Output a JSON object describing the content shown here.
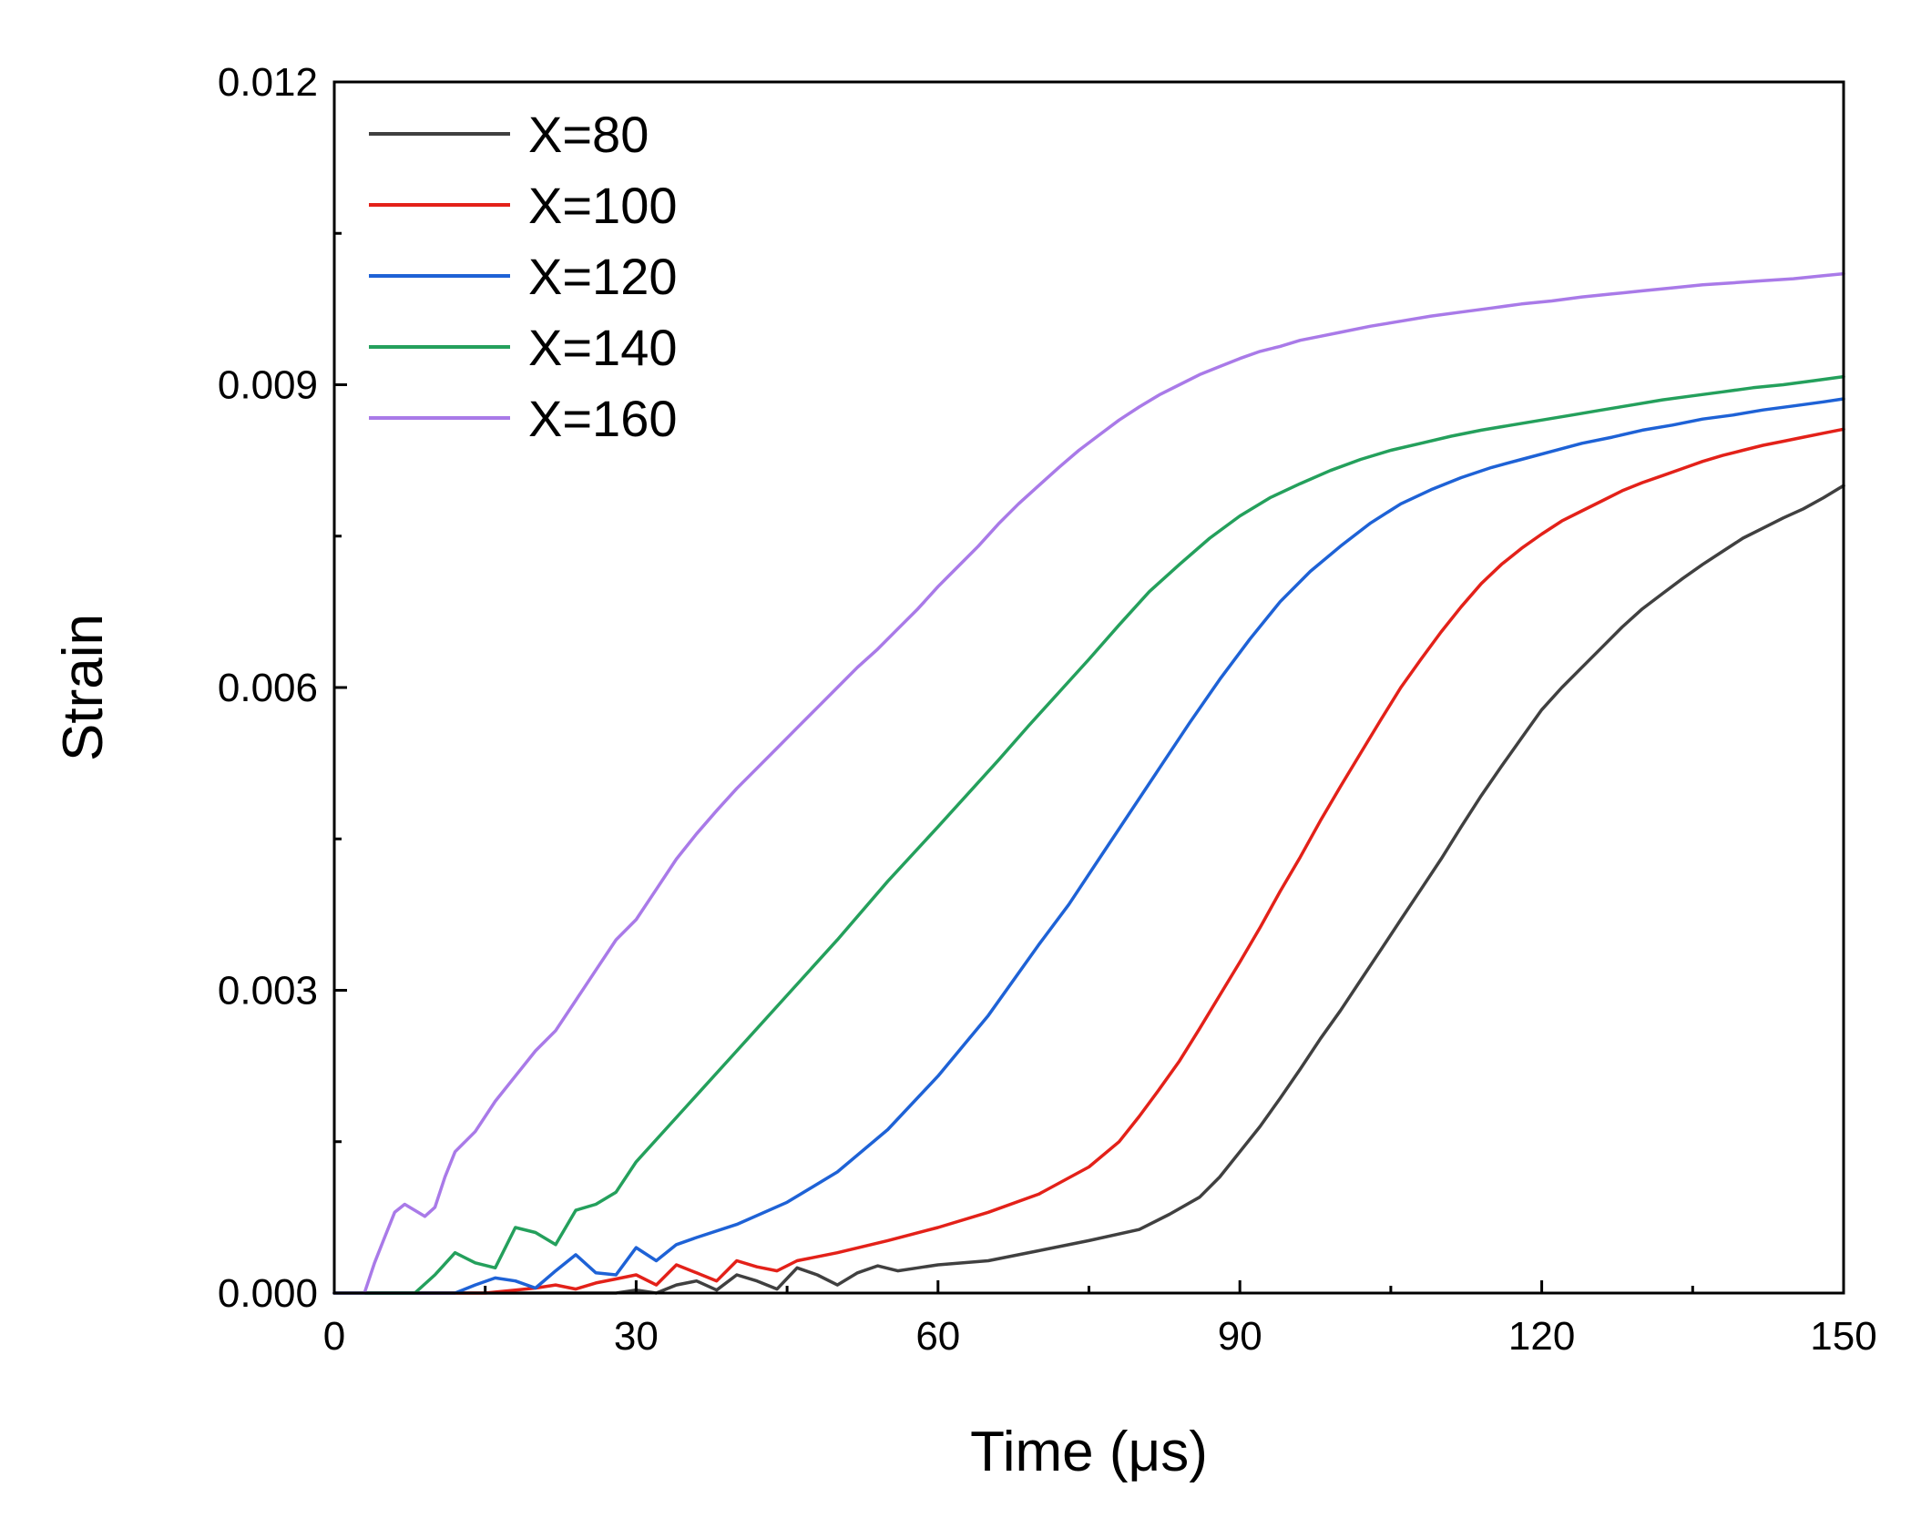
{
  "chart_data": {
    "type": "line",
    "title": "",
    "xlabel": "Time (μs)",
    "ylabel": "Strain",
    "xlim": [
      0,
      150
    ],
    "ylim": [
      0,
      0.012
    ],
    "xticks": [
      "0",
      "30",
      "60",
      "90",
      "120",
      "150"
    ],
    "yticks": [
      "0.000",
      "0.003",
      "0.006",
      "0.009",
      "0.012"
    ],
    "grid": false,
    "legend_position": "top-left",
    "series": [
      {
        "name": "X=80",
        "color": "#404040",
        "x": [
          0,
          28,
          30,
          32,
          34,
          36,
          38,
          40,
          42,
          44,
          46,
          48,
          50,
          52,
          54,
          56,
          58,
          60,
          65,
          70,
          75,
          80,
          83,
          86,
          88,
          90,
          92,
          94,
          96,
          98,
          100,
          102,
          104,
          106,
          108,
          110,
          112,
          114,
          116,
          118,
          120,
          122,
          124,
          126,
          128,
          130,
          132,
          134,
          136,
          138,
          140,
          142,
          144,
          146,
          148,
          150
        ],
        "values": [
          0,
          0,
          3e-05,
          0,
          8e-05,
          0.00012,
          3e-05,
          0.00018,
          0.00012,
          4e-05,
          0.00025,
          0.00018,
          8e-05,
          0.0002,
          0.00027,
          0.00022,
          0.00025,
          0.00028,
          0.00032,
          0.00042,
          0.00052,
          0.00063,
          0.00078,
          0.00095,
          0.00115,
          0.0014,
          0.00165,
          0.00193,
          0.00222,
          0.00252,
          0.0028,
          0.0031,
          0.0034,
          0.0037,
          0.004,
          0.0043,
          0.00462,
          0.00493,
          0.00522,
          0.0055,
          0.00578,
          0.006,
          0.0062,
          0.0064,
          0.0066,
          0.00678,
          0.00693,
          0.00708,
          0.00722,
          0.00735,
          0.00748,
          0.00758,
          0.00768,
          0.00777,
          0.00788,
          0.008
        ]
      },
      {
        "name": "X=100",
        "color": "#e32119",
        "x": [
          0,
          15,
          18,
          20,
          22,
          24,
          26,
          28,
          30,
          32,
          34,
          36,
          38,
          40,
          42,
          44,
          46,
          50,
          55,
          60,
          65,
          70,
          75,
          78,
          80,
          82,
          84,
          86,
          88,
          90,
          92,
          94,
          96,
          98,
          100,
          102,
          104,
          106,
          108,
          110,
          112,
          114,
          116,
          118,
          120,
          122,
          124,
          126,
          128,
          130,
          132,
          134,
          136,
          138,
          140,
          142,
          144,
          146,
          148,
          150
        ],
        "values": [
          0,
          0,
          3e-05,
          5e-05,
          8e-05,
          4e-05,
          0.0001,
          0.00014,
          0.00018,
          8e-05,
          0.00028,
          0.0002,
          0.00012,
          0.00032,
          0.00026,
          0.00022,
          0.00032,
          0.0004,
          0.00052,
          0.00065,
          0.0008,
          0.00098,
          0.00125,
          0.0015,
          0.00175,
          0.00202,
          0.0023,
          0.00262,
          0.00295,
          0.00328,
          0.00362,
          0.00398,
          0.00432,
          0.00468,
          0.00502,
          0.00535,
          0.00568,
          0.006,
          0.00628,
          0.00655,
          0.0068,
          0.00703,
          0.00722,
          0.00738,
          0.00752,
          0.00765,
          0.00775,
          0.00785,
          0.00795,
          0.00803,
          0.0081,
          0.00817,
          0.00824,
          0.0083,
          0.00835,
          0.0084,
          0.00844,
          0.00848,
          0.00852,
          0.00856
        ]
      },
      {
        "name": "X=120",
        "color": "#1e62d6",
        "x": [
          0,
          12,
          14,
          16,
          18,
          20,
          22,
          24,
          26,
          28,
          30,
          32,
          34,
          36,
          40,
          45,
          50,
          55,
          60,
          65,
          70,
          73,
          76,
          79,
          82,
          85,
          88,
          91,
          94,
          97,
          100,
          103,
          106,
          109,
          112,
          115,
          118,
          121,
          124,
          127,
          130,
          133,
          136,
          139,
          142,
          145,
          148,
          150
        ],
        "values": [
          0,
          0,
          8e-05,
          0.00015,
          0.00012,
          5e-05,
          0.00022,
          0.00038,
          0.0002,
          0.00018,
          0.00045,
          0.00032,
          0.00048,
          0.00055,
          0.00068,
          0.0009,
          0.0012,
          0.00162,
          0.00215,
          0.00275,
          0.00345,
          0.00385,
          0.0043,
          0.00475,
          0.0052,
          0.00565,
          0.00608,
          0.00648,
          0.00685,
          0.00715,
          0.0074,
          0.00763,
          0.00782,
          0.00796,
          0.00808,
          0.00818,
          0.00826,
          0.00834,
          0.00842,
          0.00848,
          0.00855,
          0.0086,
          0.00866,
          0.0087,
          0.00875,
          0.00879,
          0.00883,
          0.00886
        ]
      },
      {
        "name": "X=140",
        "color": "#24a05c",
        "x": [
          0,
          8,
          10,
          12,
          14,
          16,
          18,
          20,
          22,
          24,
          26,
          28,
          30,
          35,
          40,
          45,
          50,
          55,
          60,
          63,
          66,
          69,
          72,
          75,
          78,
          81,
          84,
          87,
          90,
          93,
          96,
          99,
          102,
          105,
          108,
          111,
          114,
          117,
          120,
          123,
          126,
          129,
          132,
          135,
          138,
          141,
          144,
          147,
          150
        ],
        "values": [
          0,
          0,
          0.00018,
          0.0004,
          0.0003,
          0.00025,
          0.00065,
          0.0006,
          0.00048,
          0.00082,
          0.00088,
          0.001,
          0.0013,
          0.00185,
          0.0024,
          0.00295,
          0.0035,
          0.00408,
          0.00462,
          0.00495,
          0.00528,
          0.00562,
          0.00595,
          0.00628,
          0.00662,
          0.00695,
          0.00722,
          0.00748,
          0.0077,
          0.00788,
          0.00802,
          0.00815,
          0.00826,
          0.00835,
          0.00842,
          0.00849,
          0.00855,
          0.0086,
          0.00865,
          0.0087,
          0.00875,
          0.0088,
          0.00885,
          0.00889,
          0.00893,
          0.00897,
          0.009,
          0.00904,
          0.00908
        ]
      },
      {
        "name": "X=160",
        "color": "#a97ae8",
        "x": [
          0,
          3,
          4,
          5,
          6,
          7,
          8,
          9,
          10,
          11,
          12,
          13,
          14,
          16,
          18,
          20,
          22,
          24,
          26,
          28,
          30,
          32,
          34,
          36,
          38,
          40,
          42,
          44,
          46,
          48,
          50,
          52,
          54,
          56,
          58,
          60,
          62,
          64,
          66,
          68,
          70,
          72,
          74,
          76,
          78,
          80,
          82,
          84,
          86,
          88,
          90,
          92,
          94,
          96,
          98,
          100,
          103,
          106,
          109,
          112,
          115,
          118,
          121,
          124,
          127,
          130,
          133,
          136,
          139,
          142,
          145,
          148,
          150
        ],
        "values": [
          0,
          0,
          0.0003,
          0.00055,
          0.0008,
          0.00088,
          0.00082,
          0.00076,
          0.00085,
          0.00115,
          0.0014,
          0.0015,
          0.0016,
          0.0019,
          0.00215,
          0.0024,
          0.0026,
          0.0029,
          0.0032,
          0.0035,
          0.0037,
          0.004,
          0.0043,
          0.00455,
          0.00478,
          0.005,
          0.0052,
          0.0054,
          0.0056,
          0.0058,
          0.006,
          0.0062,
          0.00638,
          0.00658,
          0.00678,
          0.007,
          0.0072,
          0.0074,
          0.00762,
          0.00782,
          0.008,
          0.00818,
          0.00835,
          0.0085,
          0.00865,
          0.00878,
          0.0089,
          0.009,
          0.0091,
          0.00918,
          0.00926,
          0.00933,
          0.00938,
          0.00944,
          0.00948,
          0.00952,
          0.00958,
          0.00963,
          0.00968,
          0.00972,
          0.00976,
          0.0098,
          0.00983,
          0.00987,
          0.0099,
          0.00993,
          0.00996,
          0.00999,
          0.01001,
          0.01003,
          0.01005,
          0.01008,
          0.0101
        ]
      }
    ]
  }
}
